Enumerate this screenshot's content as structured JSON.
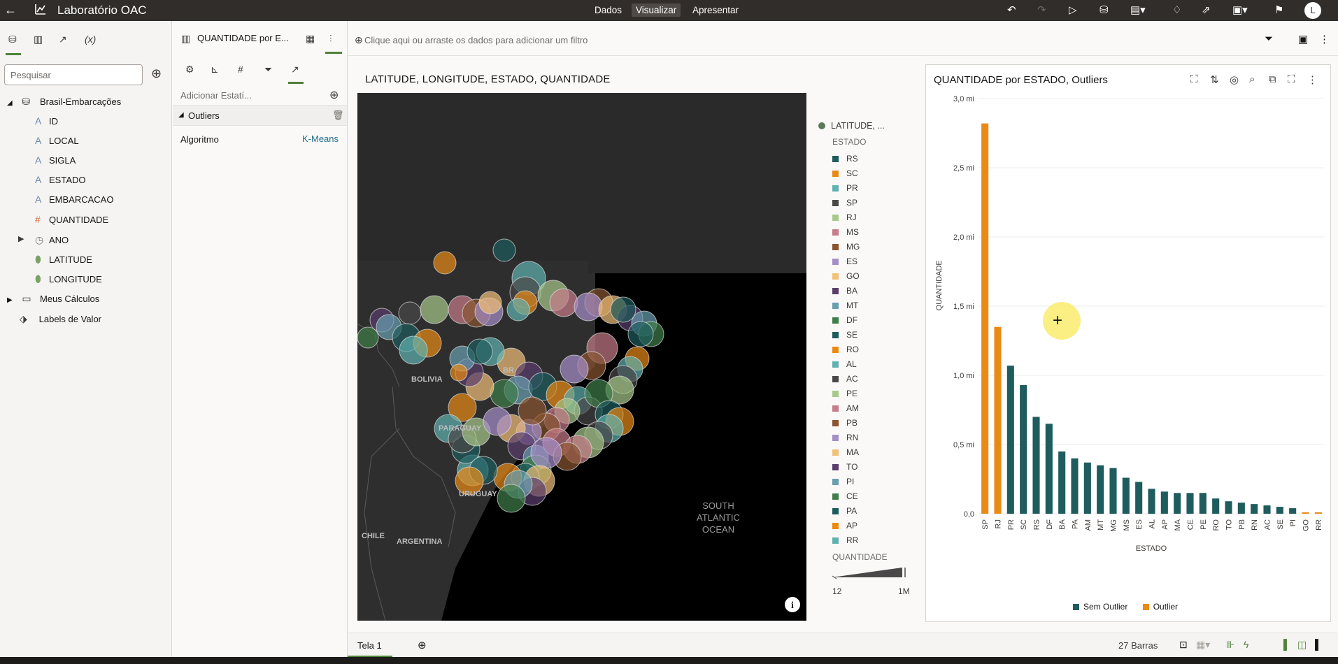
{
  "topbar": {
    "app_title": "Laboratório OAC",
    "tabs": [
      "Dados",
      "Visualizar",
      "Apresentar"
    ],
    "avatar": "L"
  },
  "left_panel": {
    "search_placeholder": "Pesquisar",
    "dataset": "Brasil-Embarcações",
    "fields": [
      {
        "type": "text",
        "label": "ID"
      },
      {
        "type": "text",
        "label": "LOCAL"
      },
      {
        "type": "text",
        "label": "SIGLA"
      },
      {
        "type": "text",
        "label": "ESTADO"
      },
      {
        "type": "text",
        "label": "EMBARCACAO"
      },
      {
        "type": "number",
        "label": "QUANTIDADE"
      },
      {
        "type": "time",
        "label": "ANO"
      },
      {
        "type": "geo",
        "label": "LATITUDE"
      },
      {
        "type": "geo",
        "label": "LONGITUDE"
      }
    ],
    "folders": [
      "Meus Cálculos",
      "Labels de Valor"
    ],
    "tab_icons": [
      "data-icon",
      "visualizations-icon",
      "analytics-icon",
      "variables-icon"
    ],
    "variables_label": "(x)"
  },
  "mid_panel": {
    "viz_name": "QUANTIDADE por E...",
    "add_statistic": "Adicionar Estatí...",
    "section": "Outliers",
    "algorithm_label": "Algoritmo",
    "algorithm_value": "K-Means"
  },
  "filterbar": {
    "placeholder": "Clique aqui ou arraste os dados para adicionar um filtro"
  },
  "map": {
    "title": "LATITUDE, LONGITUDE, ESTADO, QUANTIDADE",
    "places": [
      "BOLIVIA",
      "BR",
      "PARAGUAY",
      "URUGUAY",
      "CHILE",
      "ARGENTINA",
      "SOUTH",
      "ATLANTIC",
      "OCEAN"
    ],
    "legend": {
      "layer": "LATITUDE, ...",
      "color_title": "ESTADO",
      "size_title": "QUANTIDADE",
      "size_min": "12",
      "size_max": "1M",
      "entries": [
        {
          "label": "RS",
          "color": "#1f5c5e"
        },
        {
          "label": "SC",
          "color": "#e98a15"
        },
        {
          "label": "PR",
          "color": "#5fb2b0"
        },
        {
          "label": "SP",
          "color": "#4a4848"
        },
        {
          "label": "RJ",
          "color": "#a8c98c"
        },
        {
          "label": "MS",
          "color": "#c77c8a"
        },
        {
          "label": "MG",
          "color": "#8a5530"
        },
        {
          "label": "ES",
          "color": "#a68ec9"
        },
        {
          "label": "GO",
          "color": "#f2c078"
        },
        {
          "label": "BA",
          "color": "#5a3f6e"
        },
        {
          "label": "MT",
          "color": "#6a9fb0"
        },
        {
          "label": "DF",
          "color": "#3f7d4a"
        },
        {
          "label": "SE",
          "color": "#1f5c5e"
        },
        {
          "label": "RO",
          "color": "#e98a15"
        },
        {
          "label": "AL",
          "color": "#5fb2b0"
        },
        {
          "label": "AC",
          "color": "#4a4848"
        },
        {
          "label": "PE",
          "color": "#a8c98c"
        },
        {
          "label": "AM",
          "color": "#c77c8a"
        },
        {
          "label": "PB",
          "color": "#8a5530"
        },
        {
          "label": "RN",
          "color": "#a68ec9"
        },
        {
          "label": "MA",
          "color": "#f2c078"
        },
        {
          "label": "TO",
          "color": "#5a3f6e"
        },
        {
          "label": "PI",
          "color": "#6a9fb0"
        },
        {
          "label": "CE",
          "color": "#3f7d4a"
        },
        {
          "label": "PA",
          "color": "#1f5c5e"
        },
        {
          "label": "AP",
          "color": "#e98a15"
        },
        {
          "label": "RR",
          "color": "#5fb2b0"
        }
      ]
    }
  },
  "chart_card": {
    "title": "QUANTIDADE por ESTADO, Outliers"
  },
  "chart_data": {
    "type": "bar",
    "title": "QUANTIDADE por ESTADO, Outliers",
    "xlabel": "ESTADO",
    "ylabel": "QUANTIDADE",
    "ylim": [
      0,
      3.0
    ],
    "yticks": [
      "0,0",
      "0,5 mi",
      "1,0 mi",
      "1,5 mi",
      "2,0 mi",
      "2,5 mi",
      "3,0 mi"
    ],
    "ytick_values": [
      0,
      0.5,
      1.0,
      1.5,
      2.0,
      2.5,
      3.0
    ],
    "categories": [
      "SP",
      "RJ",
      "PR",
      "SC",
      "RS",
      "DF",
      "BA",
      "PA",
      "AM",
      "MT",
      "MG",
      "MS",
      "ES",
      "AL",
      "AP",
      "MA",
      "CE",
      "PE",
      "RO",
      "TO",
      "PB",
      "RN",
      "AC",
      "SE",
      "PI",
      "GO",
      "RR"
    ],
    "values": [
      2.82,
      1.35,
      1.07,
      0.93,
      0.7,
      0.65,
      0.45,
      0.4,
      0.37,
      0.35,
      0.33,
      0.26,
      0.23,
      0.18,
      0.16,
      0.15,
      0.15,
      0.15,
      0.11,
      0.09,
      0.08,
      0.07,
      0.06,
      0.05,
      0.04,
      0.01,
      0.01
    ],
    "outlier": [
      true,
      true,
      false,
      false,
      false,
      false,
      false,
      false,
      false,
      false,
      false,
      false,
      false,
      false,
      false,
      false,
      false,
      false,
      false,
      false,
      false,
      false,
      false,
      false,
      false,
      true,
      true
    ],
    "series_colors": {
      "Sem Outlier": "#1f5c5e",
      "Outlier": "#e98a15"
    },
    "legend": [
      "Sem Outlier",
      "Outlier"
    ],
    "legend_position": "bottom",
    "grid": true
  },
  "bottombar": {
    "canvas_tab": "Tela 1",
    "bar_count": "27 Barras"
  }
}
